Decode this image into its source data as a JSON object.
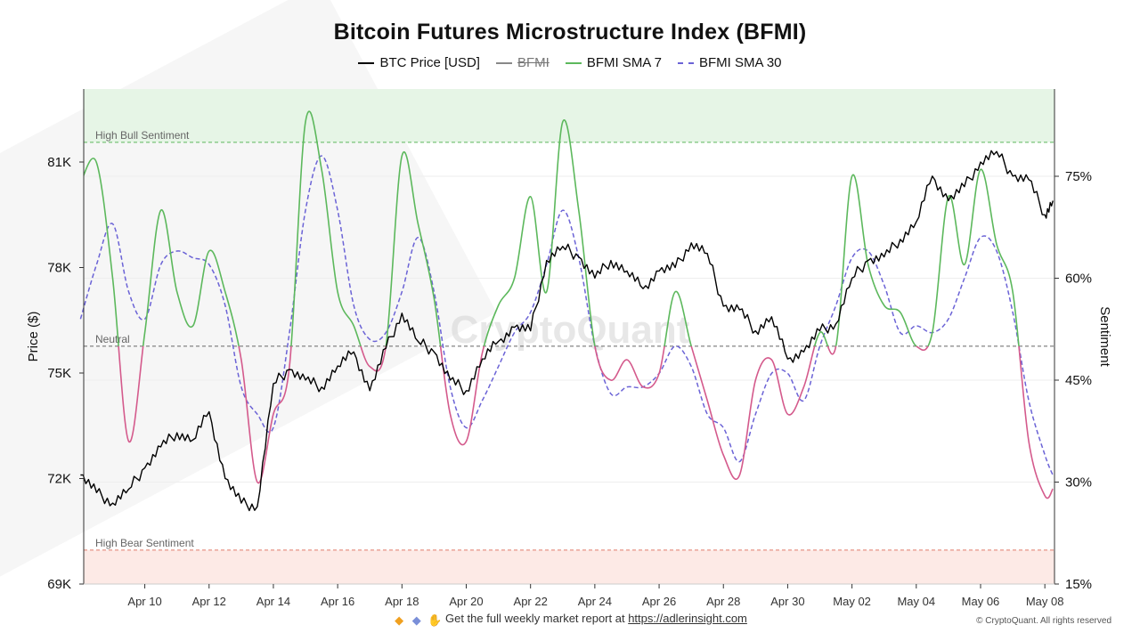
{
  "title": "Bitcoin Futures Microstructure Index (BFMI)",
  "legend": [
    {
      "label": "BTC Price [USD]",
      "color": "#000000",
      "style": "solid",
      "enabled": true
    },
    {
      "label": "BFMI",
      "color": "#888888",
      "style": "solid",
      "enabled": false
    },
    {
      "label": "BFMI SMA 7",
      "color": "#5cb85c",
      "style": "solid",
      "enabled": true
    },
    {
      "label": "BFMI SMA 30",
      "color": "#6b63d6",
      "style": "dashed",
      "enabled": true
    }
  ],
  "footer": {
    "text": "Get the full weekly market report at",
    "link": "https://adlerinsight.com",
    "copyright": "© CryptoQuant. All rights reserved"
  },
  "watermark": "CryptoQuant",
  "colors": {
    "price": "#000000",
    "sma7_bull": "#5cb85c",
    "sma7_bear": "#d45a8c",
    "sma30": "#6b63d6",
    "bull_zone": "#e6f5e6",
    "bear_zone": "#fdeae6"
  },
  "chart_data": {
    "type": "line",
    "title": "Bitcoin Futures Microstructure Index (BFMI)",
    "x_ticks": [
      "Apr 10",
      "Apr 12",
      "Apr 14",
      "Apr 16",
      "Apr 18",
      "Apr 20",
      "Apr 22",
      "Apr 24",
      "Apr 26",
      "Apr 28",
      "Apr 30",
      "May 02",
      "May 04",
      "May 06",
      "May 08"
    ],
    "x_range_days": [
      -1.9,
      28.3
    ],
    "y_left_label": "Price ($)",
    "y_left_ticks": [
      "69K",
      "72K",
      "75K",
      "78K",
      "81K"
    ],
    "y_left_range": [
      69000,
      81000
    ],
    "y_right_label": "Sentiment",
    "y_right_ticks": [
      "15%",
      "30%",
      "45%",
      "60%",
      "75%"
    ],
    "y_right_range": [
      15,
      75
    ],
    "threshold_lines": [
      {
        "label": "High Bull Sentiment",
        "value": 80
      },
      {
        "label": "Neutral",
        "value": 50
      },
      {
        "label": "High Bear Sentiment",
        "value": 20
      }
    ],
    "series": [
      {
        "name": "BTC Price [USD]",
        "axis": "left",
        "x": [
          "2025-04-08 00:00",
          "2025-04-08 12:00",
          "2025-04-09 00:00",
          "2025-04-09 12:00",
          "2025-04-10 00:00",
          "2025-04-10 12:00",
          "2025-04-11 00:00",
          "2025-04-11 12:00",
          "2025-04-12 00:00",
          "2025-04-12 12:00",
          "2025-04-13 00:00",
          "2025-04-13 12:00",
          "2025-04-14 00:00",
          "2025-04-14 12:00",
          "2025-04-15 00:00",
          "2025-04-15 12:00",
          "2025-04-16 00:00",
          "2025-04-16 12:00",
          "2025-04-17 00:00",
          "2025-04-17 12:00",
          "2025-04-18 00:00",
          "2025-04-18 12:00",
          "2025-04-19 00:00",
          "2025-04-19 12:00",
          "2025-04-20 00:00",
          "2025-04-20 12:00",
          "2025-04-21 00:00",
          "2025-04-21 12:00",
          "2025-04-22 00:00",
          "2025-04-22 12:00",
          "2025-04-23 00:00",
          "2025-04-23 12:00",
          "2025-04-24 00:00",
          "2025-04-24 12:00",
          "2025-04-25 00:00",
          "2025-04-25 12:00",
          "2025-04-26 00:00",
          "2025-04-26 12:00",
          "2025-04-27 00:00",
          "2025-04-27 12:00",
          "2025-04-28 00:00",
          "2025-04-28 12:00",
          "2025-04-29 00:00",
          "2025-04-29 12:00",
          "2025-04-30 00:00",
          "2025-04-30 12:00",
          "2025-05-01 00:00",
          "2025-05-01 12:00",
          "2025-05-02 00:00",
          "2025-05-02 12:00",
          "2025-05-03 00:00",
          "2025-05-03 12:00",
          "2025-05-04 00:00",
          "2025-05-04 12:00",
          "2025-05-05 00:00",
          "2025-05-05 12:00",
          "2025-05-06 00:00",
          "2025-05-06 12:00",
          "2025-05-07 00:00",
          "2025-05-07 12:00",
          "2025-05-08 00:00",
          "2025-05-08 06:00"
        ],
        "values": [
          72100,
          71600,
          71300,
          71700,
          72300,
          72900,
          73300,
          73100,
          73900,
          72000,
          71300,
          71200,
          74700,
          75100,
          74800,
          74600,
          75200,
          75600,
          74500,
          75700,
          76700,
          75900,
          75600,
          74800,
          74500,
          75400,
          75900,
          76300,
          76200,
          78200,
          78600,
          78300,
          77700,
          78200,
          77900,
          77400,
          77900,
          78000,
          78700,
          78400,
          76900,
          76800,
          76200,
          76600,
          75400,
          75600,
          76200,
          76400,
          77700,
          78200,
          78300,
          78800,
          79300,
          80600,
          79900,
          80300,
          81000,
          81300,
          80600,
          80500,
          79500,
          79900
        ]
      },
      {
        "name": "BFMI SMA 7",
        "axis": "right",
        "x": [
          "2025-04-08 00:00",
          "2025-04-08 12:00",
          "2025-04-09 00:00",
          "2025-04-09 12:00",
          "2025-04-10 00:00",
          "2025-04-10 12:00",
          "2025-04-11 00:00",
          "2025-04-11 12:00",
          "2025-04-12 00:00",
          "2025-04-12 12:00",
          "2025-04-13 00:00",
          "2025-04-13 12:00",
          "2025-04-14 00:00",
          "2025-04-14 12:00",
          "2025-04-15 00:00",
          "2025-04-15 12:00",
          "2025-04-16 00:00",
          "2025-04-16 12:00",
          "2025-04-17 00:00",
          "2025-04-17 12:00",
          "2025-04-18 00:00",
          "2025-04-18 12:00",
          "2025-04-19 00:00",
          "2025-04-19 12:00",
          "2025-04-20 00:00",
          "2025-04-20 12:00",
          "2025-04-21 00:00",
          "2025-04-21 12:00",
          "2025-04-22 00:00",
          "2025-04-22 12:00",
          "2025-04-23 00:00",
          "2025-04-23 12:00",
          "2025-04-24 00:00",
          "2025-04-24 12:00",
          "2025-04-25 00:00",
          "2025-04-25 12:00",
          "2025-04-26 00:00",
          "2025-04-26 12:00",
          "2025-04-27 00:00",
          "2025-04-27 12:00",
          "2025-04-28 00:00",
          "2025-04-28 12:00",
          "2025-04-29 00:00",
          "2025-04-29 12:00",
          "2025-04-30 00:00",
          "2025-04-30 12:00",
          "2025-05-01 00:00",
          "2025-05-01 12:00",
          "2025-05-02 00:00",
          "2025-05-02 12:00",
          "2025-05-03 00:00",
          "2025-05-03 12:00",
          "2025-05-04 00:00",
          "2025-05-04 12:00",
          "2025-05-05 00:00",
          "2025-05-05 12:00",
          "2025-05-06 00:00",
          "2025-05-06 12:00",
          "2025-05-07 00:00",
          "2025-05-07 12:00",
          "2025-05-08 00:00",
          "2025-05-08 06:00"
        ],
        "values": [
          74,
          77,
          60,
          36,
          52,
          70,
          58,
          53,
          64,
          58,
          48,
          30,
          40,
          47,
          83,
          76,
          58,
          53,
          47,
          50,
          78,
          68,
          57,
          40,
          36,
          49,
          56,
          60,
          72,
          58,
          83,
          70,
          50,
          45,
          48,
          44,
          46,
          58,
          50,
          42,
          34,
          31,
          45,
          48,
          40,
          44,
          52,
          50,
          75,
          62,
          56,
          55,
          50,
          52,
          72,
          62,
          76,
          65,
          58,
          36,
          28,
          29
        ]
      },
      {
        "name": "BFMI SMA 30",
        "axis": "right",
        "x": [
          "2025-04-08 00:00",
          "2025-04-08 12:00",
          "2025-04-09 00:00",
          "2025-04-09 12:00",
          "2025-04-10 00:00",
          "2025-04-10 12:00",
          "2025-04-11 00:00",
          "2025-04-11 12:00",
          "2025-04-12 00:00",
          "2025-04-12 12:00",
          "2025-04-13 00:00",
          "2025-04-13 12:00",
          "2025-04-14 00:00",
          "2025-04-14 12:00",
          "2025-04-15 00:00",
          "2025-04-15 12:00",
          "2025-04-16 00:00",
          "2025-04-16 12:00",
          "2025-04-17 00:00",
          "2025-04-17 12:00",
          "2025-04-18 00:00",
          "2025-04-18 12:00",
          "2025-04-19 00:00",
          "2025-04-19 12:00",
          "2025-04-20 00:00",
          "2025-04-20 12:00",
          "2025-04-21 00:00",
          "2025-04-21 12:00",
          "2025-04-22 00:00",
          "2025-04-22 12:00",
          "2025-04-23 00:00",
          "2025-04-23 12:00",
          "2025-04-24 00:00",
          "2025-04-24 12:00",
          "2025-04-25 00:00",
          "2025-04-25 12:00",
          "2025-04-26 00:00",
          "2025-04-26 12:00",
          "2025-04-27 00:00",
          "2025-04-27 12:00",
          "2025-04-28 00:00",
          "2025-04-28 12:00",
          "2025-04-29 00:00",
          "2025-04-29 12:00",
          "2025-04-30 00:00",
          "2025-04-30 12:00",
          "2025-05-01 00:00",
          "2025-05-01 12:00",
          "2025-05-02 00:00",
          "2025-05-02 12:00",
          "2025-05-03 00:00",
          "2025-05-03 12:00",
          "2025-05-04 00:00",
          "2025-05-04 12:00",
          "2025-05-05 00:00",
          "2025-05-05 12:00",
          "2025-05-06 00:00",
          "2025-05-06 12:00",
          "2025-05-07 00:00",
          "2025-05-07 12:00",
          "2025-05-08 00:00",
          "2025-05-08 06:00"
        ],
        "values": [
          54,
          62,
          68,
          58,
          54,
          62,
          64,
          63,
          62,
          56,
          44,
          40,
          38,
          52,
          70,
          78,
          70,
          56,
          51,
          52,
          58,
          66,
          58,
          44,
          38,
          42,
          47,
          52,
          55,
          62,
          70,
          63,
          50,
          43,
          44,
          44,
          46,
          50,
          47,
          40,
          38,
          33,
          40,
          46,
          46,
          42,
          50,
          56,
          63,
          64,
          59,
          52,
          53,
          52,
          54,
          60,
          66,
          64,
          55,
          42,
          34,
          31
        ]
      }
    ]
  }
}
